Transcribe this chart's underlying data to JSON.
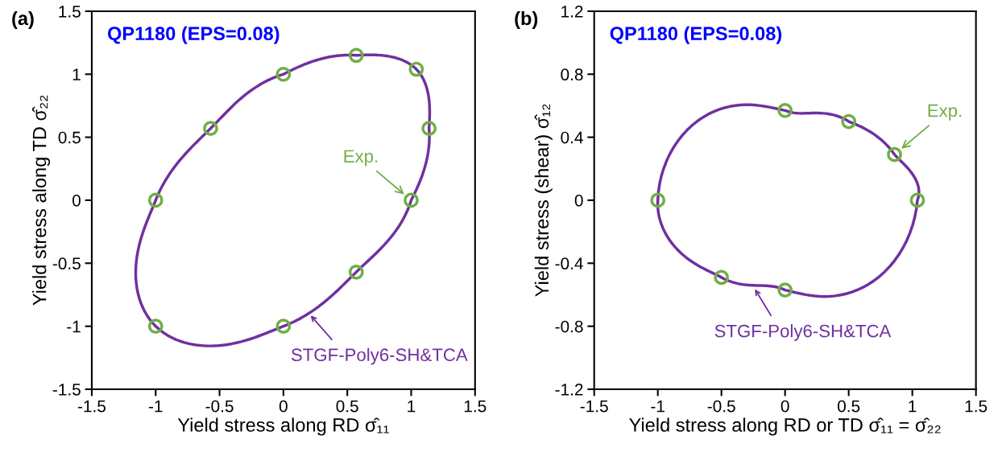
{
  "chart_data": [
    {
      "type": "scatter",
      "title": "(a)",
      "subtitle": "QP1180 (EPS=0.08)",
      "xlabel": "Yield stress along RD σ̂₁₁",
      "ylabel": "Yield stress along TD σ̂₂₂",
      "xlim": [
        -1.5,
        1.5
      ],
      "ylim": [
        -1.5,
        1.5
      ],
      "xticks": [
        -1.5,
        -1,
        -0.5,
        0,
        0.5,
        1,
        1.5
      ],
      "yticks": [
        -1.5,
        -1,
        -0.5,
        0,
        0.5,
        1,
        1.5
      ],
      "grid": false,
      "legend": false,
      "series": [
        {
          "marker": "circle",
          "color": "#70ad47",
          "x": [
            0,
            0.57,
            1.04,
            1.14,
            1,
            0.57,
            0,
            -1,
            -1,
            -0.57
          ],
          "values": [
            1,
            1.15,
            1.04,
            0.57,
            0,
            -0.57,
            -1,
            -1,
            0,
            0.57
          ]
        }
      ],
      "annotations": [
        {
          "text": "Exp.",
          "x": 1,
          "y": 0
        },
        "STGF-Poly6-SH&TCA"
      ]
    },
    {
      "type": "scatter",
      "title": "(b)",
      "subtitle": "QP1180 (EPS=0.08)",
      "xlabel": "Yield stress along RD or TD σ̂₁₁ = σ̂₂₂",
      "ylabel": "Yield stress (shear) σ̂₁₂",
      "xlim": [
        -1.5,
        1.5
      ],
      "ylim": [
        -1.2,
        1.2
      ],
      "xticks": [
        -1.5,
        -1,
        -0.5,
        0,
        0.5,
        1,
        1.5
      ],
      "yticks": [
        -1.2,
        -0.8,
        -0.4,
        0,
        0.4,
        0.8,
        1.2
      ],
      "grid": false,
      "legend": false,
      "series": [
        {
          "marker": "circle",
          "color": "#70ad47",
          "x": [
            -1,
            0,
            0.5,
            0.86,
            1.04,
            -0.5,
            0
          ],
          "values": [
            0,
            0.57,
            0.5,
            0.29,
            0,
            -0.49,
            -0.57
          ]
        }
      ],
      "annotations": [
        {
          "text": "Exp.",
          "x": 0.86,
          "y": 0.29
        },
        "STGF-Poly6-SH&TCA"
      ]
    }
  ]
}
